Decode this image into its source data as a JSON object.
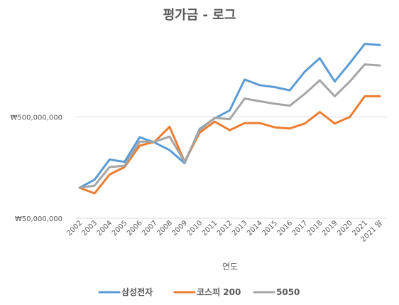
{
  "chart_data": {
    "type": "line",
    "title": "평가금 - 로그",
    "xlabel": "연도",
    "ylabel": "",
    "yscale": "log",
    "ylim": [
      50000000,
      5000000000
    ],
    "yticks": [
      {
        "value": 50000000,
        "label": "₩50,000,000"
      },
      {
        "value": 500000000,
        "label": "₩500,000,000"
      }
    ],
    "grid": true,
    "legend": "bottom",
    "x": [
      "2002",
      "2003",
      "2004",
      "2005",
      "2006",
      "2007",
      "2008",
      "2009",
      "2010",
      "2011",
      "2012",
      "2013",
      "2014",
      "2015",
      "2016",
      "2017",
      "2018",
      "2019",
      "2020",
      "2021",
      "2021 말"
    ],
    "series": [
      {
        "name": "삼성전자",
        "color": "#5b9bd5",
        "values": [
          100000000,
          120000000,
          190000000,
          180000000,
          315000000,
          280000000,
          235000000,
          175000000,
          380000000,
          485000000,
          580000000,
          1170000000,
          1030000000,
          985000000,
          915000000,
          1400000000,
          1900000000,
          1120000000,
          1700000000,
          2630000000,
          2560000000
        ]
      },
      {
        "name": "코스피 200",
        "color": "#ed7d31",
        "values": [
          100000000,
          88000000,
          135000000,
          160000000,
          260000000,
          285000000,
          400000000,
          180000000,
          350000000,
          450000000,
          370000000,
          435000000,
          435000000,
          395000000,
          385000000,
          430000000,
          560000000,
          430000000,
          500000000,
          800000000,
          800000000
        ]
      },
      {
        "name": "5050",
        "color": "#a5a5a5",
        "values": [
          100000000,
          105000000,
          160000000,
          165000000,
          285000000,
          285000000,
          320000000,
          180000000,
          370000000,
          490000000,
          475000000,
          760000000,
          715000000,
          675000000,
          645000000,
          845000000,
          1150000000,
          800000000,
          1120000000,
          1650000000,
          1610000000
        ]
      }
    ]
  }
}
